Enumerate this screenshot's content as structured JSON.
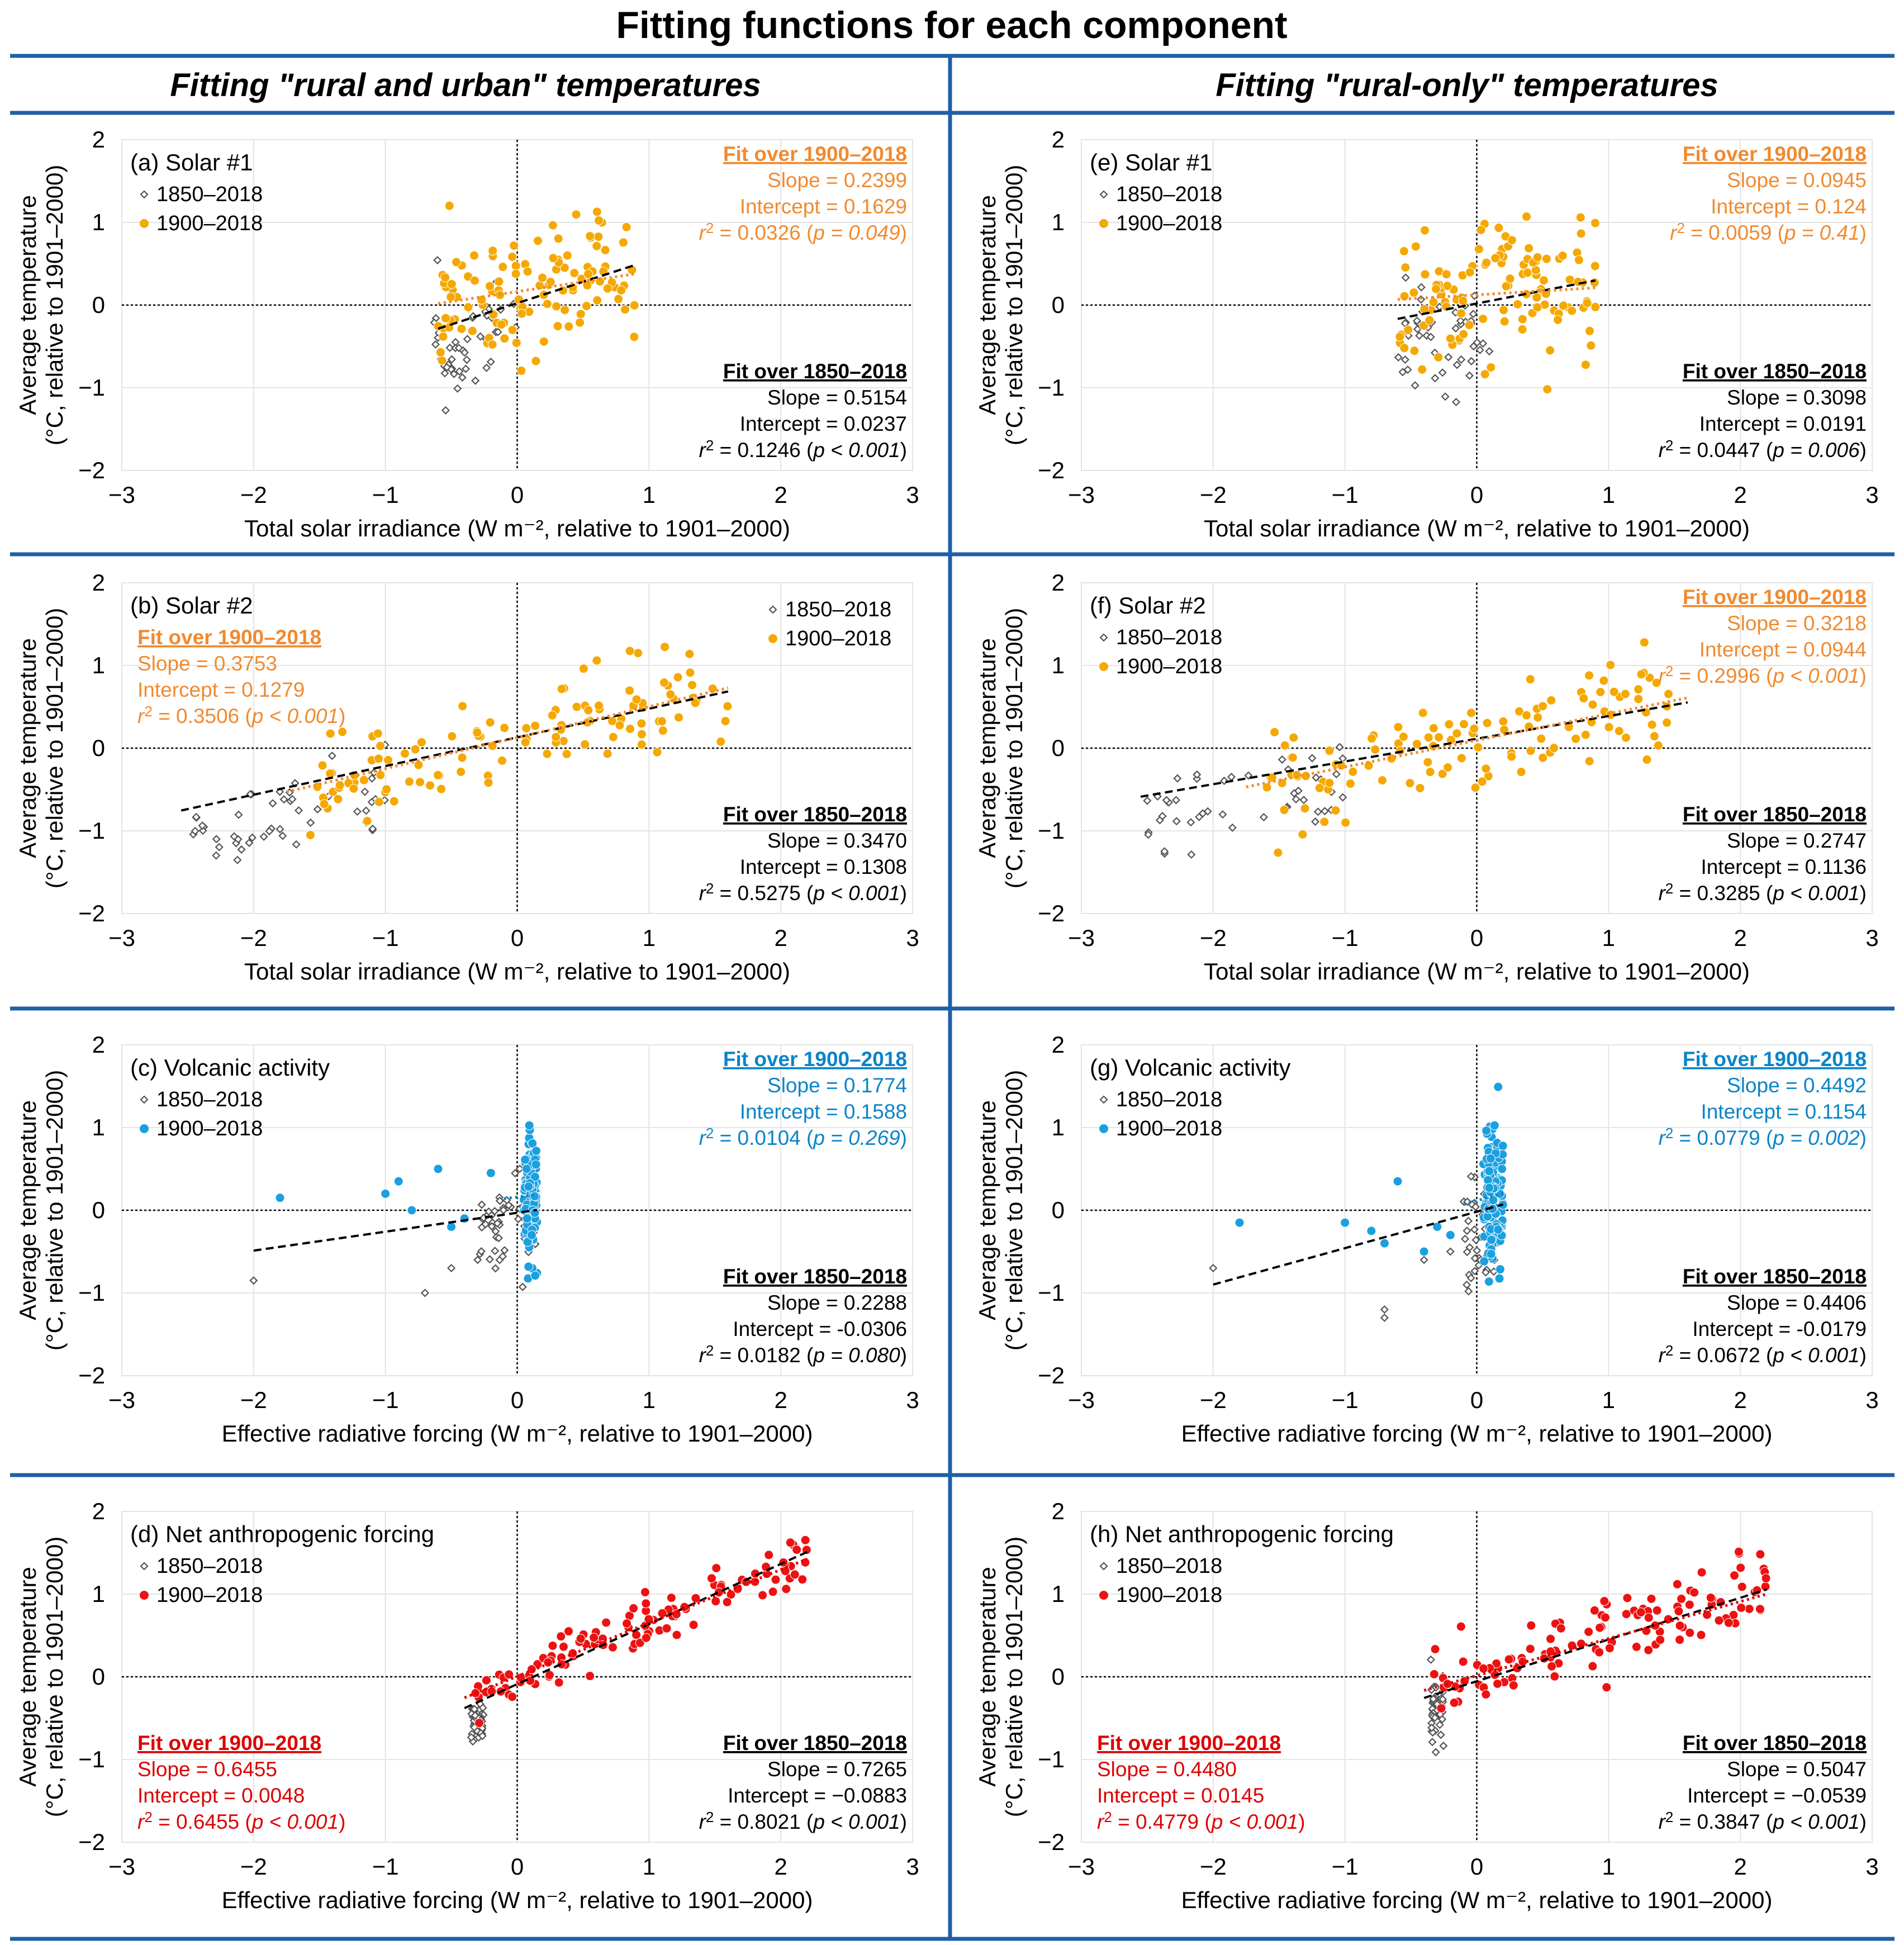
{
  "title": "Fitting functions for each component",
  "columns": [
    "Fitting \"rural and urban\" temperatures",
    "Fitting \"rural-only\" temperatures"
  ],
  "colors": {
    "frame": "#1f5fa6",
    "solar": "#f5a800",
    "solar_fit": "#f08a30",
    "volcanic": "#1aa0e0",
    "volcanic_fit": "#0a84c8",
    "anthro": "#ee1111",
    "anthro_fit": "#dd0000",
    "grey_marker": "#555555"
  },
  "legend": {
    "series_a": "1850–2018",
    "series_b": "1900–2018"
  },
  "common": {
    "ylabel_line1": "Average temperature",
    "ylabel_line2": "(°C, relative to 1901–2000)",
    "fit_1900_title": "Fit over 1900–2018",
    "fit_1850_title": "Fit over 1850–2018"
  },
  "chart_data": [
    {
      "id": "a",
      "type": "scatter",
      "col": 0,
      "row": 0,
      "label": "(a) Solar #1",
      "theme": "solar",
      "xlabel": "Total solar irradiance (W m⁻², relative to 1901–2000)",
      "xlim": [
        -3,
        3
      ],
      "ylim": [
        -2,
        2
      ],
      "xticks": [
        "−3",
        "−2",
        "−1",
        "0",
        "1",
        "2",
        "3"
      ],
      "yticks": [
        "2",
        "1",
        "0",
        "−1",
        "−2"
      ],
      "fit_1900": {
        "slope": "Slope = 0.2399",
        "intercept": "Intercept = 0.1629",
        "r2": "0.0326",
        "p": "p = 0.049",
        "s": 0.2399,
        "b": 0.1629,
        "placement": "top-right"
      },
      "fit_1850": {
        "slope": "Slope = 0.5154",
        "intercept": "Intercept = 0.0237",
        "r2": "0.1246",
        "p": "p < 0.001",
        "s": 0.5154,
        "b": 0.0237,
        "placement": "bottom-right"
      },
      "gen": {
        "seed": 11,
        "n_old": 50,
        "old_x": [
          -0.65,
          0.0
        ],
        "n_new": 119,
        "new_x": [
          -0.6,
          0.9
        ],
        "noise": 0.38
      },
      "fit_x": [
        -0.6,
        0.9
      ],
      "legend_pos": "top-left"
    },
    {
      "id": "b",
      "type": "scatter",
      "col": 0,
      "row": 1,
      "label": "(b) Solar #2",
      "theme": "solar",
      "xlabel": "Total solar irradiance (W m⁻², relative to 1901–2000)",
      "xlim": [
        -3,
        3
      ],
      "ylim": [
        -2,
        2
      ],
      "xticks": [
        "−3",
        "−2",
        "−1",
        "0",
        "1",
        "2",
        "3"
      ],
      "yticks": [
        "2",
        "1",
        "0",
        "−1",
        "−2"
      ],
      "fit_1900": {
        "slope": "Slope = 0.3753",
        "intercept": "Intercept = 0.1279",
        "r2": "0.3506",
        "p": "p < 0.001",
        "s": 0.3753,
        "b": 0.1279,
        "placement": "top-left"
      },
      "fit_1850": {
        "slope": "Slope = 0.3470",
        "intercept": "Intercept = 0.1308",
        "r2": "0.5275",
        "p": "p < 0.001",
        "s": 0.347,
        "b": 0.1308,
        "placement": "bottom-right"
      },
      "gen": {
        "seed": 23,
        "n_old": 50,
        "old_x": [
          -2.5,
          -1.0
        ],
        "n_new": 119,
        "new_x": [
          -1.6,
          1.6
        ],
        "noise": 0.28
      },
      "fit_x": [
        -2.55,
        1.6
      ],
      "legend_pos": "top-right"
    },
    {
      "id": "c",
      "type": "scatter",
      "col": 0,
      "row": 2,
      "label": "(c) Volcanic activity",
      "theme": "volcanic",
      "xlabel": "Effective radiative forcing (W m⁻², relative to 1901–2000)",
      "xlim": [
        -3,
        3
      ],
      "ylim": [
        -2,
        2
      ],
      "xticks": [
        "−3",
        "−2",
        "−1",
        "0",
        "1",
        "2",
        "3"
      ],
      "yticks": [
        "2",
        "1",
        "0",
        "−1",
        "−2"
      ],
      "fit_1900": {
        "slope": "Slope = 0.1774",
        "intercept": "Intercept = 0.1588",
        "r2": "0.0104",
        "p": "p = 0.269",
        "s": 0.1774,
        "b": 0.1588,
        "placement": "top-right"
      },
      "fit_1850": {
        "slope": "Slope = 0.2288",
        "intercept": "Intercept = -0.0306",
        "r2": "0.0182",
        "p": "p = 0.080",
        "s": 0.2288,
        "b": -0.0306,
        "placement": "bottom-right"
      },
      "gen": {
        "seed": 37,
        "n_old": 50,
        "old_x": [
          -0.3,
          0.15
        ],
        "n_new": 119,
        "new_x": [
          0.05,
          0.15
        ],
        "noise": 0.4
      },
      "extra_old": [
        [
          -2.0,
          -0.85
        ],
        [
          -0.7,
          -1.0
        ],
        [
          -0.5,
          -0.7
        ],
        [
          -0.3,
          -0.6
        ]
      ],
      "extra_new": [
        [
          -1.8,
          0.15
        ],
        [
          -1.0,
          0.2
        ],
        [
          -0.9,
          0.35
        ],
        [
          -0.6,
          0.5
        ],
        [
          -0.4,
          -0.1
        ],
        [
          -0.2,
          0.45
        ],
        [
          -0.8,
          0.0
        ],
        [
          -0.5,
          -0.2
        ]
      ],
      "fit_x": [
        -2.0,
        0.15
      ],
      "legend_pos": "top-left"
    },
    {
      "id": "d",
      "type": "scatter",
      "col": 0,
      "row": 3,
      "label": "(d) Net anthropogenic forcing",
      "theme": "anthro",
      "xlabel": "Effective radiative forcing (W m⁻², relative to 1901–2000)",
      "xlim": [
        -3,
        3
      ],
      "ylim": [
        -2,
        2
      ],
      "xticks": [
        "−3",
        "−2",
        "−1",
        "0",
        "1",
        "2",
        "3"
      ],
      "yticks": [
        "2",
        "1",
        "0",
        "−1",
        "−2"
      ],
      "fit_1900": {
        "slope": "Slope = 0.6455",
        "intercept": "Intercept = 0.0048",
        "r2": "0.6455",
        "p": "p < 0.001",
        "s": 0.6455,
        "b": 0.0048,
        "placement": "bottom-left"
      },
      "fit_1850": {
        "slope": "Slope = 0.7265",
        "intercept": "Intercept = −0.0883",
        "r2": "0.8021",
        "p": "p < 0.001",
        "s": 0.7265,
        "b": -0.0883,
        "placement": "bottom-right"
      },
      "gen": {
        "seed": 41,
        "n_old": 50,
        "old_x": [
          -0.35,
          -0.25
        ],
        "n_new": 119,
        "new_x": [
          -0.35,
          2.2
        ],
        "noise": 0.15
      },
      "fit_x": [
        -0.4,
        2.2
      ],
      "legend_pos": "top-left"
    },
    {
      "id": "e",
      "type": "scatter",
      "col": 1,
      "row": 0,
      "label": "(e) Solar #1",
      "theme": "solar",
      "xlabel": "Total solar irradiance (W m⁻², relative to 1901–2000)",
      "xlim": [
        -3,
        3
      ],
      "ylim": [
        -2,
        2
      ],
      "xticks": [
        "−3",
        "−2",
        "−1",
        "0",
        "1",
        "2",
        "3"
      ],
      "yticks": [
        "2",
        "1",
        "0",
        "−1",
        "−2"
      ],
      "fit_1900": {
        "slope": "Slope = 0.0945",
        "intercept": "Intercept = 0.124",
        "r2": "0.0059",
        "p": "p = 0.41",
        "s": 0.0945,
        "b": 0.124,
        "placement": "top-right"
      },
      "fit_1850": {
        "slope": "Slope = 0.3098",
        "intercept": "Intercept = 0.0191",
        "r2": "0.0447",
        "p": "p = 0.006",
        "s": 0.3098,
        "b": 0.0191,
        "placement": "bottom-right"
      },
      "gen": {
        "seed": 53,
        "n_old": 50,
        "old_x": [
          -0.6,
          0.1
        ],
        "n_new": 119,
        "new_x": [
          -0.6,
          0.9
        ],
        "noise": 0.42
      },
      "fit_x": [
        -0.6,
        0.9
      ],
      "legend_pos": "top-left"
    },
    {
      "id": "f",
      "type": "scatter",
      "col": 1,
      "row": 1,
      "label": "(f) Solar #2",
      "theme": "solar",
      "xlabel": "Total solar irradiance (W m⁻², relative to 1901–2000)",
      "xlim": [
        -3,
        3
      ],
      "ylim": [
        -2,
        2
      ],
      "xticks": [
        "−3",
        "−2",
        "−1",
        "0",
        "1",
        "2",
        "3"
      ],
      "yticks": [
        "2",
        "1",
        "0",
        "−1",
        "−2"
      ],
      "fit_1900": {
        "slope": "Slope = 0.3218",
        "intercept": "Intercept = 0.0944",
        "r2": "0.2996",
        "p": "p < 0.001",
        "s": 0.3218,
        "b": 0.0944,
        "placement": "top-right"
      },
      "fit_1850": {
        "slope": "Slope = 0.2747",
        "intercept": "Intercept = 0.1136",
        "r2": "0.3285",
        "p": "p < 0.001",
        "s": 0.2747,
        "b": 0.1136,
        "placement": "bottom-right"
      },
      "gen": {
        "seed": 67,
        "n_old": 50,
        "old_x": [
          -2.5,
          -1.0
        ],
        "n_new": 119,
        "new_x": [
          -1.6,
          1.6
        ],
        "noise": 0.3
      },
      "fit_x": [
        -2.55,
        1.6
      ],
      "legend_pos": "top-left"
    },
    {
      "id": "g",
      "type": "scatter",
      "col": 1,
      "row": 2,
      "label": "(g) Volcanic activity",
      "theme": "volcanic",
      "xlabel": "Effective radiative forcing (W m⁻², relative to 1901–2000)",
      "xlim": [
        -3,
        3
      ],
      "ylim": [
        -2,
        2
      ],
      "xticks": [
        "−3",
        "−2",
        "−1",
        "0",
        "1",
        "2",
        "3"
      ],
      "yticks": [
        "2",
        "1",
        "0",
        "−1",
        "−2"
      ],
      "fit_1900": {
        "slope": "Slope = 0.4492",
        "intercept": "Intercept = 0.1154",
        "r2": "0.0779",
        "p": "p = 0.002",
        "s": 0.4492,
        "b": 0.1154,
        "placement": "top-right"
      },
      "fit_1850": {
        "slope": "Slope = 0.4406",
        "intercept": "Intercept = -0.0179",
        "r2": "0.0672",
        "p": "p < 0.001",
        "s": 0.4406,
        "b": -0.0179,
        "placement": "bottom-right"
      },
      "gen": {
        "seed": 79,
        "n_old": 50,
        "old_x": [
          -0.1,
          0.2
        ],
        "n_new": 119,
        "new_x": [
          0.05,
          0.2
        ],
        "noise": 0.42
      },
      "extra_old": [
        [
          -2.0,
          -0.7
        ],
        [
          -0.7,
          -1.3
        ],
        [
          -0.7,
          -1.2
        ],
        [
          -0.4,
          -0.6
        ],
        [
          -0.2,
          -0.5
        ]
      ],
      "extra_new": [
        [
          -1.8,
          -0.15
        ],
        [
          -1.0,
          -0.15
        ],
        [
          -0.8,
          -0.25
        ],
        [
          -0.6,
          0.35
        ],
        [
          -0.4,
          -0.5
        ],
        [
          -0.3,
          -0.2
        ],
        [
          -0.2,
          -0.3
        ],
        [
          -0.7,
          -0.4
        ]
      ],
      "fit_x": [
        -2.0,
        0.2
      ],
      "legend_pos": "top-left"
    },
    {
      "id": "h",
      "type": "scatter",
      "col": 1,
      "row": 3,
      "label": "(h) Net anthropogenic forcing",
      "theme": "anthro",
      "xlabel": "Effective radiative forcing (W m⁻², relative to 1901–2000)",
      "xlim": [
        -3,
        3
      ],
      "ylim": [
        -2,
        2
      ],
      "xticks": [
        "−3",
        "−2",
        "−1",
        "0",
        "1",
        "2",
        "3"
      ],
      "yticks": [
        "2",
        "1",
        "0",
        "−1",
        "−2"
      ],
      "fit_1900": {
        "slope": "Slope = 0.4480",
        "intercept": "Intercept = 0.0145",
        "r2": "0.4779",
        "p": "p < 0.001",
        "s": 0.448,
        "b": 0.0145,
        "placement": "bottom-left"
      },
      "fit_1850": {
        "slope": "Slope = 0.5047",
        "intercept": "Intercept = −0.0539",
        "r2": "0.3847",
        "p": "p < 0.001",
        "s": 0.5047,
        "b": -0.0539,
        "placement": "bottom-right"
      },
      "gen": {
        "seed": 97,
        "n_old": 50,
        "old_x": [
          -0.35,
          -0.25
        ],
        "n_new": 119,
        "new_x": [
          -0.35,
          2.2
        ],
        "noise": 0.28
      },
      "fit_x": [
        -0.4,
        2.2
      ],
      "legend_pos": "top-left"
    }
  ]
}
